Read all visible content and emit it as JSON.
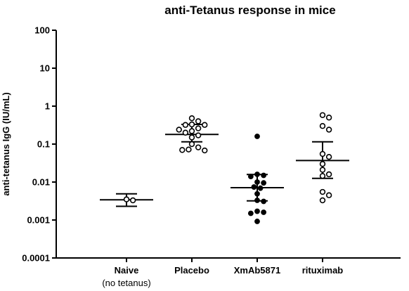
{
  "chart_data": {
    "type": "scatter",
    "title": "anti-Tetanus response in mice",
    "xlabel": "",
    "ylabel": "anti-tetanus IgG (IU/mL)",
    "yscale": "log",
    "ylim": [
      0.0001,
      100
    ],
    "yticks": [
      "100",
      "10",
      "1",
      "0.1",
      "0.01",
      "0.001",
      "0.0001"
    ],
    "grid": false,
    "legend": "none",
    "groups": [
      {
        "label": "Naive",
        "sublabel": "(no tetanus)",
        "marker": "open",
        "mean": 0.0034,
        "error_high": 0.0049,
        "error_low": 0.0023,
        "points": [
          0.0033,
          0.0035
        ]
      },
      {
        "label": "Placebo",
        "marker": "open",
        "mean": 0.18,
        "error_high": 0.33,
        "error_low": 0.115,
        "points": [
          0.48,
          0.4,
          0.33,
          0.32,
          0.32,
          0.26,
          0.24,
          0.22,
          0.2,
          0.17,
          0.15,
          0.1,
          0.082,
          0.072,
          0.07,
          0.068
        ]
      },
      {
        "label": "XmAb5871",
        "marker": "filled",
        "mean": 0.0071,
        "error_high": 0.0158,
        "error_low": 0.0032,
        "points": [
          0.16,
          0.016,
          0.015,
          0.014,
          0.01,
          0.0095,
          0.0074,
          0.0069,
          0.0049,
          0.0033,
          0.0031,
          0.0017,
          0.0016,
          0.0015,
          0.00092
        ]
      },
      {
        "label": "rituximab",
        "marker": "open",
        "mean": 0.037,
        "error_high": 0.115,
        "error_low": 0.0125,
        "points": [
          0.58,
          0.5,
          0.3,
          0.24,
          0.055,
          0.046,
          0.03,
          0.021,
          0.016,
          0.0145,
          0.0055,
          0.0045,
          0.0033
        ]
      }
    ]
  },
  "colors": {
    "ink": "#000000",
    "background": "#ffffff"
  }
}
